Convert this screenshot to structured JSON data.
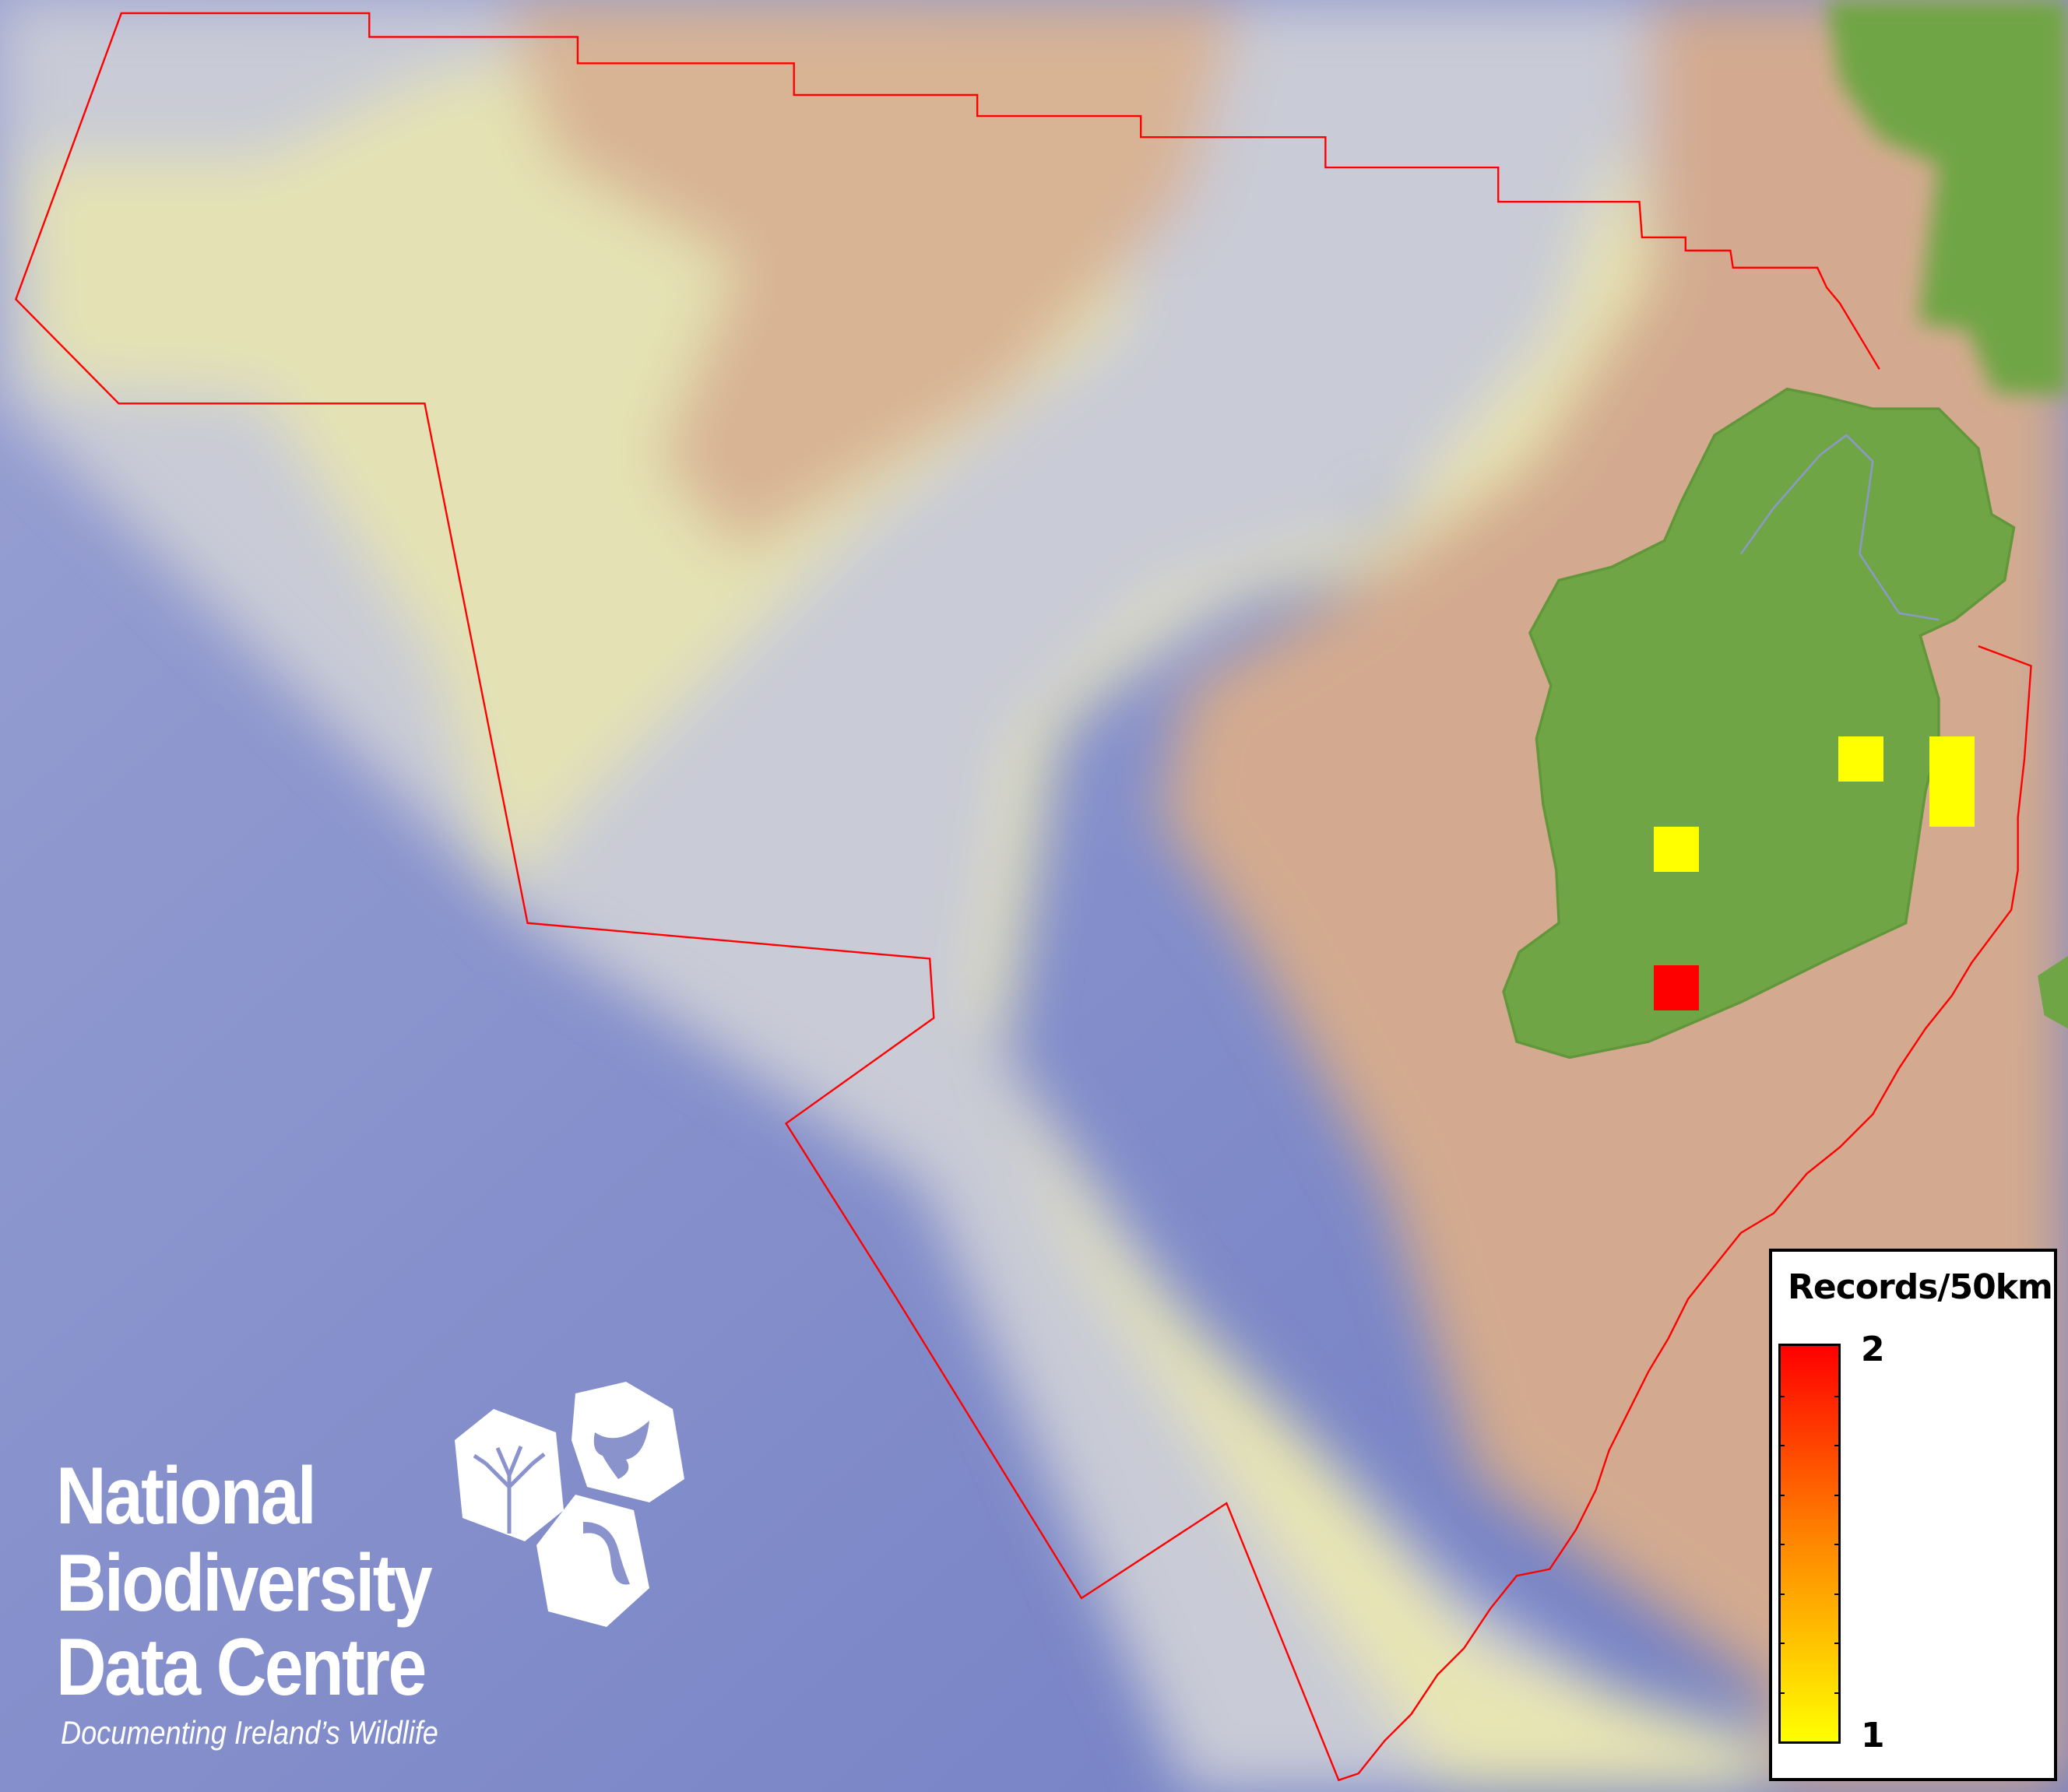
{
  "map": {
    "colors": {
      "ocean": "#7e88c9",
      "shelf": "#e6e3b1",
      "land_shelf": "#d3aa8f",
      "land": "#6fa544",
      "boundary": "#ff0000"
    },
    "records": [
      {
        "value": 1,
        "color": "#ffff00",
        "grid": "east-midlands-a"
      },
      {
        "value": 1,
        "color": "#ffff00",
        "grid": "east-coast-a"
      },
      {
        "value": 1,
        "color": "#ffff00",
        "grid": "east-coast-b"
      },
      {
        "value": 1,
        "color": "#ffff00",
        "grid": "west"
      },
      {
        "value": 2,
        "color": "#ff0000",
        "grid": "south-west"
      }
    ]
  },
  "legend": {
    "title": "Records/50km",
    "max_label": "2",
    "min_label": "1",
    "gradient": [
      "#ffff00",
      "#ff8800",
      "#ff0000"
    ]
  },
  "logo": {
    "line1": "National",
    "line2": "Biodiversity",
    "line3": "Data Centre",
    "tagline": "Documenting Ireland’s Wildlife"
  }
}
